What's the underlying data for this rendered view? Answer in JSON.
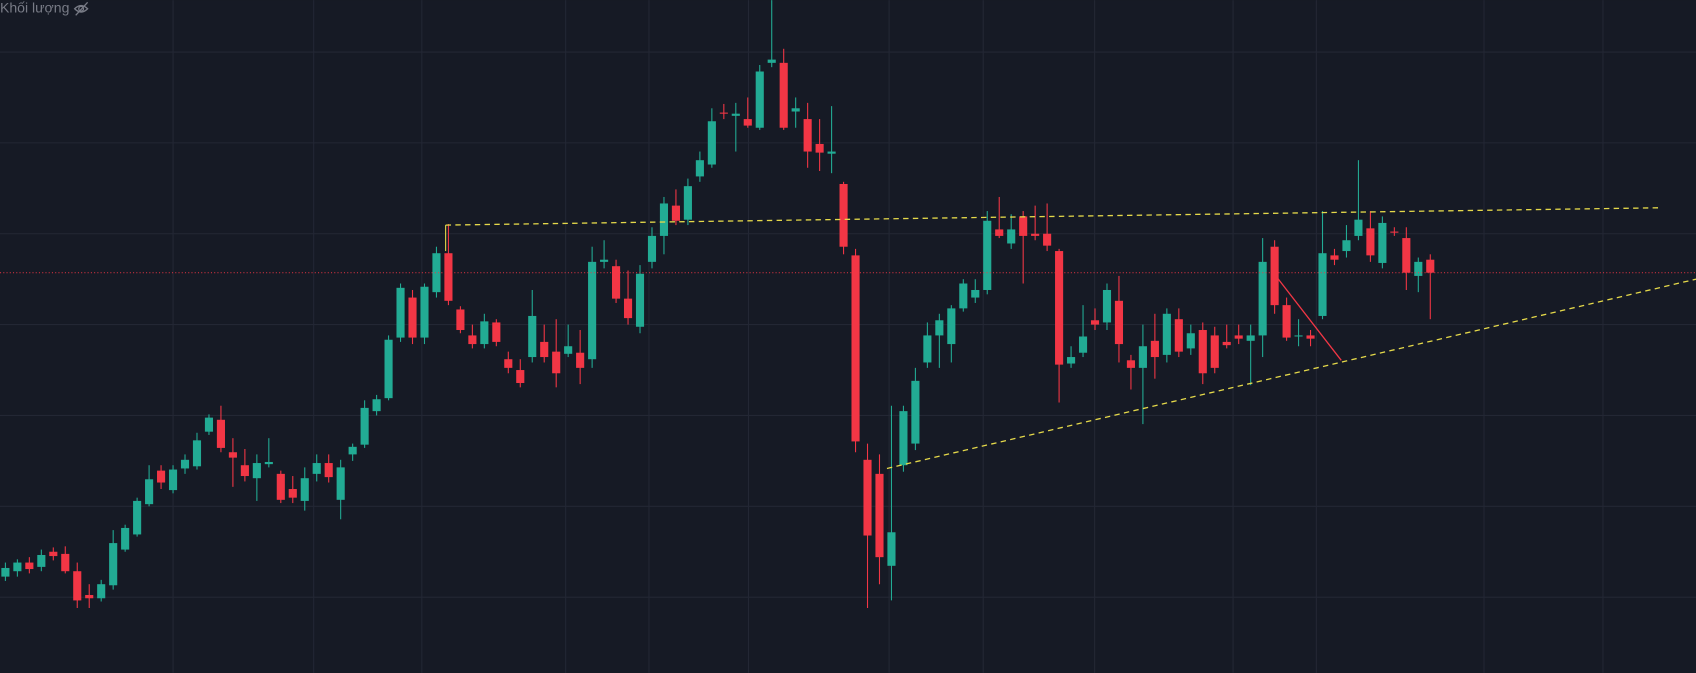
{
  "volume_label": "Khối lượng",
  "chart_data": {
    "type": "candlestick",
    "up_color": "#22ab94",
    "down_color": "#f23645",
    "ylim": [
      0,
      622
    ],
    "open": [
      89,
      94,
      102,
      98,
      112,
      110,
      94,
      72,
      69,
      81,
      114,
      128,
      156,
      187,
      169,
      189,
      191,
      223,
      234,
      204,
      192,
      180,
      193,
      184,
      170,
      159,
      184,
      194,
      160,
      202,
      211,
      242,
      254,
      310,
      347,
      310,
      352,
      388,
      336,
      312,
      304,
      324,
      290,
      280,
      292,
      306,
      297,
      295,
      296,
      290,
      380,
      376,
      346,
      320,
      380,
      404,
      432,
      419,
      459,
      470,
      518,
      515,
      512,
      504,
      564,
      564,
      519,
      512,
      489,
      480,
      452,
      386,
      197,
      184,
      99,
      192,
      212,
      287,
      312,
      304,
      337,
      347,
      354,
      410,
      397,
      422,
      406,
      406,
      390,
      286,
      296,
      326,
      324,
      344,
      289,
      282,
      307,
      294,
      327,
      300,
      317,
      312,
      306,
      312,
      307,
      312,
      394,
      340,
      312,
      312,
      330,
      386,
      390,
      404,
      411,
      379,
      408,
      402,
      367,
      382
    ],
    "high": [
      102,
      105,
      107,
      114,
      116,
      117,
      102,
      82,
      86,
      132,
      137,
      162,
      192,
      192,
      192,
      202,
      222,
      239,
      247,
      217,
      207,
      202,
      217,
      187,
      182,
      190,
      202,
      202,
      197,
      212,
      252,
      257,
      312,
      360,
      354,
      360,
      394,
      415,
      339,
      322,
      332,
      327,
      297,
      290,
      354,
      322,
      327,
      322,
      317,
      394,
      400,
      382,
      372,
      377,
      412,
      440,
      447,
      457,
      482,
      522,
      526,
      527,
      532,
      562,
      622,
      577,
      532,
      527,
      512,
      524,
      454,
      392,
      212,
      202,
      247,
      247,
      282,
      324,
      332,
      340,
      364,
      364,
      427,
      440,
      424,
      427,
      432,
      434,
      392,
      302,
      340,
      337,
      360,
      367,
      294,
      322,
      332,
      337,
      337,
      322,
      324,
      320,
      322,
      322,
      322,
      402,
      400,
      347,
      327,
      317,
      427,
      392,
      414,
      474,
      427,
      422,
      412,
      412,
      384,
      387
    ],
    "low": [
      85,
      89,
      92,
      94,
      104,
      92,
      60,
      60,
      66,
      77,
      112,
      126,
      154,
      170,
      166,
      184,
      188,
      220,
      204,
      172,
      177,
      159,
      190,
      157,
      157,
      150,
      177,
      176,
      142,
      196,
      208,
      238,
      252,
      306,
      304,
      304,
      347,
      340,
      314,
      300,
      300,
      302,
      277,
      264,
      287,
      287,
      264,
      292,
      267,
      282,
      374,
      342,
      322,
      314,
      374,
      387,
      414,
      414,
      454,
      467,
      512,
      482,
      504,
      502,
      560,
      502,
      504,
      467,
      464,
      462,
      387,
      204,
      60,
      82,
      67,
      186,
      206,
      282,
      282,
      287,
      334,
      342,
      350,
      402,
      392,
      360,
      400,
      390,
      250,
      282,
      292,
      317,
      317,
      287,
      262,
      230,
      272,
      287,
      292,
      294,
      267,
      277,
      300,
      304,
      266,
      292,
      332,
      307,
      302,
      302,
      327,
      377,
      384,
      400,
      380,
      374,
      404,
      354,
      352,
      327
    ],
    "close": [
      97,
      102,
      96,
      109,
      108,
      94,
      67,
      69,
      82,
      120,
      134,
      159,
      179,
      176,
      188,
      197,
      215,
      236,
      208,
      199,
      182,
      194,
      195,
      160,
      162,
      180,
      194,
      181,
      190,
      209,
      245,
      253,
      308,
      356,
      310,
      357,
      388,
      344,
      317,
      304,
      325,
      306,
      282,
      268,
      330,
      292,
      277,
      302,
      282,
      380,
      382,
      346,
      328,
      369,
      404,
      434,
      418,
      450,
      474,
      510,
      517,
      517,
      506,
      556,
      567,
      504,
      522,
      482,
      481,
      482,
      394,
      214,
      127,
      107,
      130,
      242,
      270,
      312,
      326,
      337,
      360,
      354,
      418,
      404,
      410,
      404,
      404,
      395,
      285,
      292,
      311,
      322,
      354,
      304,
      282,
      302,
      292,
      332,
      297,
      314,
      277,
      282,
      303,
      309,
      312,
      380,
      340,
      310,
      312,
      309,
      388,
      382,
      400,
      419,
      386,
      416,
      407,
      370,
      380,
      370
    ]
  }
}
